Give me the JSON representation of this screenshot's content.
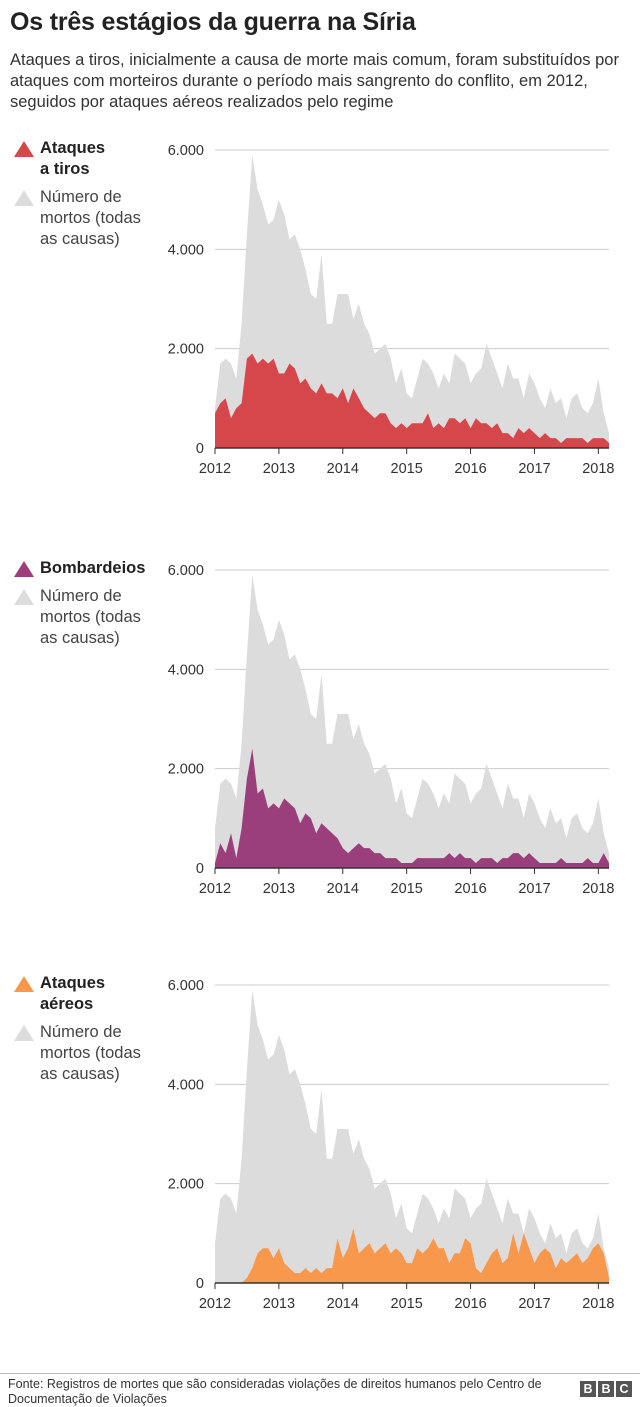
{
  "title": "Os três estágios da guerra na Síria",
  "subtitle": "Ataques a tiros, inicialmente a causa de morte mais comum, foram substituídos por ataques com morteiros durante o período mais sangrento do conflito, em 2012, seguidos por ataques aéreos realizados pelo regime",
  "source": "Fonte: Registros de mortes que são consideradas violações de direitos humanos pelo Centro de Documentação de Violações",
  "brand_letters": [
    "B",
    "B",
    "C"
  ],
  "colors": {
    "total": "#dcdcdc",
    "gunfire": "#d5474b",
    "shelling": "#9a3f7b",
    "airstrikes": "#f7984d",
    "grid": "#cccccc",
    "axis": "#333333"
  },
  "chart_data": [
    {
      "type": "area",
      "x_start": "2012-01",
      "x_step": "month",
      "xlim": [
        "2012-01",
        "2018-03"
      ],
      "ylim": [
        0,
        6000
      ],
      "grid": true,
      "ytick_labels": [
        "0",
        "2.000",
        "4.000",
        "6.000"
      ],
      "yticks": [
        0,
        2000,
        4000,
        6000
      ],
      "xtick_labels": [
        "2012",
        "2013",
        "2014",
        "2015",
        "2016",
        "2017",
        "2018"
      ],
      "legend": [
        "Ataques a tiros",
        "Número de mortos (todas as causas)"
      ],
      "series": [
        {
          "name": "Número de mortos (todas as causas)",
          "color": "#dcdcdc",
          "values": [
            800,
            1700,
            1800,
            1700,
            1400,
            2500,
            4300,
            5900,
            5200,
            4900,
            4500,
            4600,
            5000,
            4700,
            4200,
            4300,
            4000,
            3600,
            3100,
            3000,
            3900,
            2500,
            2500,
            3100,
            3100,
            3100,
            2600,
            2900,
            2500,
            2300,
            1900,
            2000,
            2100,
            1800,
            1300,
            1600,
            1100,
            1000,
            1400,
            1800,
            1700,
            1500,
            1200,
            1500,
            1300,
            1900,
            1800,
            1700,
            1300,
            1500,
            1600,
            2100,
            1800,
            1500,
            1200,
            1700,
            1400,
            1400,
            1000,
            1500,
            1300,
            1000,
            800,
            1200,
            900,
            1000,
            600,
            1000,
            1100,
            800,
            700,
            900,
            1400,
            700,
            300
          ]
        },
        {
          "name": "Ataques a tiros",
          "color": "#d5474b",
          "values": [
            700,
            900,
            1000,
            600,
            800,
            900,
            1800,
            1900,
            1700,
            1800,
            1700,
            1800,
            1500,
            1500,
            1700,
            1600,
            1300,
            1400,
            1200,
            1100,
            1300,
            1100,
            1100,
            1000,
            1200,
            900,
            1200,
            1000,
            800,
            700,
            600,
            700,
            700,
            500,
            400,
            500,
            400,
            500,
            500,
            500,
            700,
            400,
            500,
            400,
            600,
            600,
            500,
            600,
            400,
            600,
            500,
            500,
            400,
            500,
            300,
            300,
            200,
            400,
            300,
            400,
            300,
            200,
            300,
            200,
            200,
            100,
            200,
            200,
            200,
            200,
            100,
            200,
            200,
            200,
            100
          ]
        }
      ]
    },
    {
      "type": "area",
      "x_start": "2012-01",
      "x_step": "month",
      "xlim": [
        "2012-01",
        "2018-03"
      ],
      "ylim": [
        0,
        6000
      ],
      "grid": true,
      "ytick_labels": [
        "0",
        "2.000",
        "4.000",
        "6.000"
      ],
      "yticks": [
        0,
        2000,
        4000,
        6000
      ],
      "xtick_labels": [
        "2012",
        "2013",
        "2014",
        "2015",
        "2016",
        "2017",
        "2018"
      ],
      "legend": [
        "Bombardeios",
        "Número de mortos (todas as causas)"
      ],
      "series": [
        {
          "name": "Número de mortos (todas as causas)",
          "color": "#dcdcdc",
          "values": [
            800,
            1700,
            1800,
            1700,
            1400,
            2500,
            4300,
            5900,
            5200,
            4900,
            4500,
            4600,
            5000,
            4700,
            4200,
            4300,
            4000,
            3600,
            3100,
            3000,
            3900,
            2500,
            2500,
            3100,
            3100,
            3100,
            2600,
            2900,
            2500,
            2300,
            1900,
            2000,
            2100,
            1800,
            1300,
            1600,
            1100,
            1000,
            1400,
            1800,
            1700,
            1500,
            1200,
            1500,
            1300,
            1900,
            1800,
            1700,
            1300,
            1500,
            1600,
            2100,
            1800,
            1500,
            1200,
            1700,
            1400,
            1400,
            1000,
            1500,
            1300,
            1000,
            800,
            1200,
            900,
            1000,
            600,
            1000,
            1100,
            800,
            700,
            900,
            1400,
            700,
            300
          ]
        },
        {
          "name": "Bombardeios",
          "color": "#9a3f7b",
          "values": [
            100,
            500,
            300,
            700,
            200,
            800,
            1800,
            2400,
            1500,
            1600,
            1200,
            1300,
            1200,
            1400,
            1300,
            1200,
            900,
            1100,
            1000,
            700,
            900,
            800,
            700,
            600,
            400,
            300,
            400,
            500,
            400,
            400,
            300,
            300,
            200,
            200,
            200,
            100,
            100,
            100,
            200,
            200,
            200,
            200,
            200,
            200,
            300,
            200,
            300,
            200,
            200,
            100,
            200,
            200,
            200,
            100,
            200,
            200,
            300,
            300,
            200,
            300,
            200,
            100,
            100,
            100,
            100,
            200,
            100,
            100,
            100,
            100,
            200,
            100,
            100,
            300,
            100
          ]
        }
      ]
    },
    {
      "type": "area",
      "x_start": "2012-01",
      "x_step": "month",
      "xlim": [
        "2012-01",
        "2018-03"
      ],
      "ylim": [
        0,
        6000
      ],
      "grid": true,
      "ytick_labels": [
        "0",
        "2.000",
        "4.000",
        "6.000"
      ],
      "yticks": [
        0,
        2000,
        4000,
        6000
      ],
      "xtick_labels": [
        "2012",
        "2013",
        "2014",
        "2015",
        "2016",
        "2017",
        "2018"
      ],
      "legend": [
        "Ataques aéreos",
        "Número de mortos (todas as causas)"
      ],
      "series": [
        {
          "name": "Número de mortos (todas as causas)",
          "color": "#dcdcdc",
          "values": [
            800,
            1700,
            1800,
            1700,
            1400,
            2500,
            4300,
            5900,
            5200,
            4900,
            4500,
            4600,
            5000,
            4700,
            4200,
            4300,
            4000,
            3600,
            3100,
            3000,
            3900,
            2500,
            2500,
            3100,
            3100,
            3100,
            2600,
            2900,
            2500,
            2300,
            1900,
            2000,
            2100,
            1800,
            1300,
            1600,
            1100,
            1000,
            1400,
            1800,
            1700,
            1500,
            1200,
            1500,
            1300,
            1900,
            1800,
            1700,
            1300,
            1500,
            1600,
            2100,
            1800,
            1500,
            1200,
            1700,
            1400,
            1400,
            1000,
            1500,
            1300,
            1000,
            800,
            1200,
            900,
            1000,
            600,
            1000,
            1100,
            800,
            700,
            900,
            1400,
            700,
            300
          ]
        },
        {
          "name": "Ataques aéreos",
          "color": "#f7984d",
          "values": [
            0,
            0,
            0,
            0,
            0,
            0,
            100,
            300,
            600,
            700,
            700,
            500,
            700,
            400,
            300,
            200,
            200,
            300,
            200,
            300,
            200,
            300,
            300,
            900,
            500,
            700,
            1100,
            600,
            700,
            800,
            600,
            700,
            800,
            600,
            700,
            600,
            400,
            400,
            700,
            600,
            700,
            900,
            700,
            700,
            400,
            600,
            600,
            900,
            800,
            300,
            200,
            400,
            600,
            700,
            400,
            500,
            1000,
            600,
            1000,
            700,
            400,
            600,
            700,
            600,
            300,
            500,
            400,
            500,
            600,
            400,
            500,
            700,
            800,
            600,
            100
          ]
        }
      ]
    }
  ],
  "panels": [
    {
      "label_line1": "Ataques",
      "label_line2": "a tiros",
      "total_line1": "Número de",
      "total_line2": "mortos (todas",
      "total_line3": "as causas)"
    },
    {
      "label_line1": "Bombardeios",
      "label_line2": "",
      "total_line1": "Número de",
      "total_line2": "mortos (todas",
      "total_line3": "as causas)"
    },
    {
      "label_line1": "Ataques",
      "label_line2": "aéreos",
      "total_line1": "Número de",
      "total_line2": "mortos (todas",
      "total_line3": "as causas)"
    }
  ]
}
